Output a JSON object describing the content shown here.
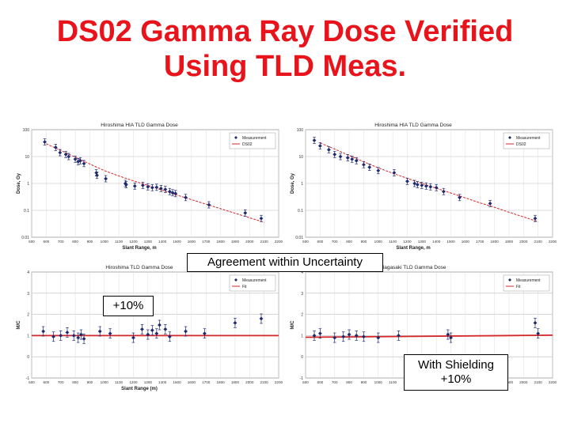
{
  "slide": {
    "title_line1": "DS02 Gamma Ray Dose Verified",
    "title_line2": "Using TLD Meas."
  },
  "callouts": {
    "agreement": "Agreement within Uncertainty",
    "plus10_left": "+10%",
    "shielding_line1": "With Shielding",
    "shielding_line2": "+10%"
  },
  "colors": {
    "title": "#e8131b",
    "measurement": "#1f2a6e",
    "fit": "#d62728"
  },
  "chart_data": [
    {
      "id": "hiroshima-dose",
      "type": "scatter",
      "title": "Hiroshima HIA TLD Gamma Dose",
      "xlabel": "Slant Range, m",
      "ylabel": "Dose, Gy",
      "yscale": "log",
      "xlim": [
        500,
        2200
      ],
      "ylim": [
        0.01,
        100
      ],
      "xticks": [
        "500",
        "600",
        "700",
        "800",
        "900",
        "1000",
        "1100",
        "1200",
        "1300",
        "1400",
        "1500",
        "1600",
        "1700",
        "1800",
        "1900",
        "2000",
        "2100",
        "2200"
      ],
      "yticks": [
        "100",
        "10",
        "1",
        "0.1",
        "0.01"
      ],
      "ytick_values": [
        100,
        10,
        1,
        0.1,
        0.01
      ],
      "legend": [
        "Measurement",
        "DS02"
      ],
      "legend_position": "top-right",
      "grid": true,
      "series": [
        {
          "name": "Measurement",
          "x": [
            590,
            665,
            695,
            735,
            755,
            800,
            820,
            835,
            860,
            945,
            950,
            1010,
            1145,
            1150,
            1210,
            1265,
            1300,
            1330,
            1360,
            1390,
            1420,
            1450,
            1470,
            1490,
            1560,
            1720,
            1970,
            2080
          ],
          "y": [
            35,
            22,
            14,
            12,
            10,
            8,
            6.5,
            7,
            5.5,
            2.5,
            2.0,
            1.5,
            1.0,
            0.9,
            0.8,
            0.85,
            0.75,
            0.7,
            0.72,
            0.65,
            0.6,
            0.5,
            0.45,
            0.42,
            0.3,
            0.16,
            0.08,
            0.05
          ]
        },
        {
          "name": "DS02",
          "x": [
            600,
            700,
            800,
            900,
            1000,
            1100,
            1200,
            1300,
            1400,
            1500,
            1600,
            1700,
            1800,
            1900,
            2000,
            2100
          ],
          "y": [
            30,
            17,
            9.5,
            5.3,
            3.0,
            1.9,
            1.25,
            0.85,
            0.56,
            0.37,
            0.25,
            0.17,
            0.115,
            0.078,
            0.053,
            0.036
          ]
        }
      ]
    },
    {
      "id": "nagasaki-dose",
      "type": "scatter",
      "title": "Hiroshima HIA TLD Gamma Dose",
      "xlabel": "Slant Range, m",
      "ylabel": "Dose, Gy",
      "yscale": "log",
      "xlim": [
        500,
        2200
      ],
      "ylim": [
        0.01,
        100
      ],
      "xticks": [
        "500",
        "600",
        "700",
        "800",
        "900",
        "1000",
        "1100",
        "1200",
        "1300",
        "1400",
        "1500",
        "1600",
        "1700",
        "1800",
        "1900",
        "2000",
        "2100",
        "2200"
      ],
      "yticks": [
        "100",
        "10",
        "1",
        "0.1",
        "0.01"
      ],
      "ytick_values": [
        100,
        10,
        1,
        0.1,
        0.01
      ],
      "legend": [
        "Measurement",
        "DS02"
      ],
      "legend_position": "top-right",
      "grid": true,
      "series": [
        {
          "name": "Measurement",
          "x": [
            560,
            600,
            660,
            700,
            740,
            790,
            820,
            850,
            900,
            940,
            1000,
            1110,
            1200,
            1250,
            1270,
            1300,
            1330,
            1360,
            1400,
            1450,
            1560,
            1770,
            2080
          ],
          "y": [
            40,
            25,
            18,
            12,
            10,
            9,
            8,
            7,
            5,
            4,
            3,
            2.5,
            1.2,
            1.0,
            0.9,
            0.85,
            0.8,
            0.75,
            0.7,
            0.5,
            0.3,
            0.18,
            0.05
          ]
        },
        {
          "name": "DS02",
          "x": [
            600,
            700,
            800,
            900,
            1000,
            1100,
            1200,
            1300,
            1400,
            1500,
            1600,
            1700,
            1800,
            1900,
            2000,
            2100
          ],
          "y": [
            32,
            19,
            11,
            6.4,
            3.8,
            2.4,
            1.55,
            1.0,
            0.66,
            0.44,
            0.29,
            0.19,
            0.13,
            0.085,
            0.057,
            0.038
          ]
        }
      ]
    },
    {
      "id": "hiroshima-ratio",
      "type": "scatter",
      "title": "Hiroshima TLD Gamma Dose",
      "xlabel": "Slant Range (m)",
      "ylabel": "M/C",
      "xlim": [
        500,
        2200
      ],
      "ylim": [
        -1,
        4
      ],
      "xticks": [
        "500",
        "600",
        "700",
        "800",
        "900",
        "1000",
        "1100",
        "1200",
        "1300",
        "1400",
        "1500",
        "1600",
        "1700",
        "1800",
        "1900",
        "2000",
        "2100",
        "2200"
      ],
      "yticks": [
        "4",
        "3",
        "2",
        "1",
        "0",
        "-1"
      ],
      "ytick_values": [
        4,
        3,
        2,
        1,
        0,
        -1
      ],
      "legend": [
        "Measurement",
        "Fit"
      ],
      "legend_position": "top-right",
      "grid": true,
      "series": [
        {
          "name": "Measurement",
          "x": [
            580,
            650,
            700,
            745,
            790,
            820,
            840,
            860,
            970,
            1040,
            1200,
            1260,
            1300,
            1330,
            1360,
            1380,
            1420,
            1450,
            1560,
            1690,
            1900,
            2080
          ],
          "y": [
            1.2,
            0.95,
            1.0,
            1.15,
            1.0,
            0.9,
            1.05,
            0.85,
            1.2,
            1.1,
            0.9,
            1.3,
            1.05,
            1.25,
            1.1,
            1.5,
            1.3,
            0.95,
            1.2,
            1.1,
            1.6,
            1.8
          ]
        },
        {
          "name": "Fit",
          "x": [
            500,
            2200
          ],
          "y": [
            1.0,
            1.0
          ]
        }
      ]
    },
    {
      "id": "nagasaki-ratio",
      "type": "scatter",
      "title": "Nagasaki TLD Gamma Dose",
      "xlabel": "",
      "ylabel": "M/C",
      "xlim": [
        500,
        2200
      ],
      "ylim": [
        -1,
        4
      ],
      "xticks": [
        "500",
        "600",
        "700",
        "800",
        "900",
        "1000",
        "1100",
        "1200",
        "1300",
        "1400",
        "1500",
        "1600",
        "1700",
        "1800",
        "1900",
        "2000",
        "2100",
        "2200"
      ],
      "yticks": [
        "4",
        "3",
        "2",
        "1",
        "0",
        "-1"
      ],
      "ytick_values": [
        4,
        3,
        2,
        1,
        0,
        -1
      ],
      "legend": [
        "Measurement",
        "Fit"
      ],
      "legend_position": "top-right",
      "grid": true,
      "series": [
        {
          "name": "Measurement",
          "x": [
            560,
            600,
            700,
            760,
            800,
            850,
            900,
            1000,
            1140,
            1480,
            1500,
            2080,
            2100
          ],
          "y": [
            1.0,
            1.1,
            0.9,
            0.95,
            1.05,
            1.0,
            0.95,
            0.9,
            1.0,
            1.05,
            0.9,
            1.6,
            1.1
          ]
        },
        {
          "name": "Fit",
          "x": [
            500,
            2200
          ],
          "y": [
            0.92,
            1.02
          ]
        }
      ]
    }
  ]
}
